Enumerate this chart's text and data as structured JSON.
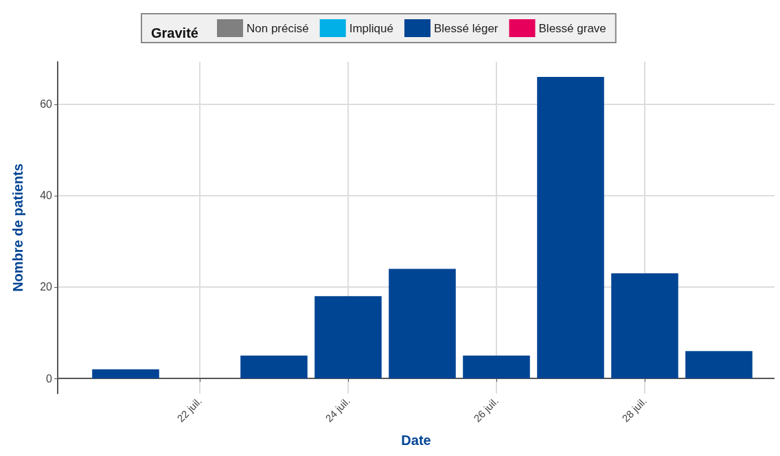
{
  "chart_data": {
    "type": "bar",
    "xlabel": "Date",
    "ylabel": "Nombre de patients",
    "legend_title": "Gravité",
    "stacked": true,
    "x": [
      "--07-21",
      "--07-22",
      "--07-23",
      "--07-24",
      "--07-25",
      "--07-26",
      "--07-27",
      "--07-28",
      "--07-29"
    ],
    "series": [
      {
        "name": "Non précisé",
        "color": "#808080",
        "values": [
          null,
          null,
          null,
          null,
          null,
          null,
          null,
          null,
          null
        ]
      },
      {
        "name": "Impliqué",
        "color": "#00b0e6",
        "values": [
          null,
          null,
          null,
          null,
          null,
          null,
          null,
          null,
          null
        ]
      },
      {
        "name": "Blessé léger",
        "color": "#004494",
        "values": [
          2,
          null,
          5,
          18,
          24,
          5,
          66,
          23,
          6
        ]
      },
      {
        "name": "Blessé grave",
        "color": "#e6005c",
        "values": [
          null,
          null,
          null,
          null,
          null,
          null,
          null,
          null,
          null
        ]
      }
    ],
    "xlim": [
      "--07-20T02:00",
      "--07-29T18:00"
    ],
    "xticks": [
      {
        "value": "--07-22",
        "label": "22 juil."
      },
      {
        "value": "--07-24",
        "label": "24 juil."
      },
      {
        "value": "--07-26",
        "label": "26 juil."
      },
      {
        "value": "--07-28",
        "label": "28 juil."
      }
    ],
    "ylim": [
      -3.3,
      69.3
    ],
    "yticks": [
      0,
      20,
      40,
      60
    ],
    "grid": true,
    "legend": "top"
  }
}
